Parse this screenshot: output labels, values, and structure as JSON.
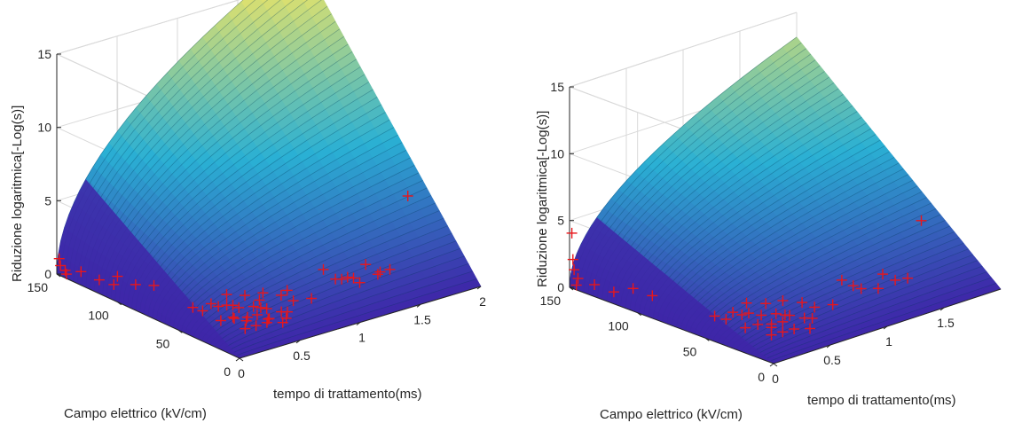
{
  "colors": {
    "marker": "#e8161b",
    "axis": "#262626",
    "grid": "#d9d9d9",
    "surface_low": "#3e26a8",
    "surface_mid": "#2ab0d4",
    "surface_high": "#dbe070"
  },
  "chart_data": [
    {
      "type": "surface3d+scatter",
      "xlabel": "tempo di trattamento(ms)",
      "ylabel": "Campo elettrico (kV/cm)",
      "zlabel": "Riduzione logaritmica[-Log(s)]",
      "xlim": [
        0,
        2
      ],
      "ylim": [
        0,
        150
      ],
      "zlim": [
        0,
        15
      ],
      "xticks": [
        "0",
        "0.5",
        "1",
        "1.5",
        "2"
      ],
      "yticks": [
        "0",
        "50",
        "100",
        "150"
      ],
      "zticks": [
        "0",
        "5",
        "10",
        "15"
      ],
      "grid": true,
      "surface_model": "z = 0.08 * E * sqrt(t) (approximate fit)",
      "scatter": [
        {
          "t": 0.02,
          "e": 150,
          "z": 1.0
        },
        {
          "t": 0.03,
          "e": 150,
          "z": 0.5
        },
        {
          "t": 0.05,
          "e": 148,
          "z": 0.2
        },
        {
          "t": 0.08,
          "e": 150,
          "z": -0.2
        },
        {
          "t": 0.1,
          "e": 140,
          "z": 0.3
        },
        {
          "t": 0.15,
          "e": 130,
          "z": 0.0
        },
        {
          "t": 0.2,
          "e": 120,
          "z": 0.5
        },
        {
          "t": 0.22,
          "e": 125,
          "z": -0.3
        },
        {
          "t": 0.25,
          "e": 110,
          "z": 0.2
        },
        {
          "t": 0.3,
          "e": 100,
          "z": 0.4
        },
        {
          "t": 0.3,
          "e": 60,
          "z": 0.2
        },
        {
          "t": 0.32,
          "e": 70,
          "z": 0.0
        },
        {
          "t": 0.35,
          "e": 50,
          "z": -0.2
        },
        {
          "t": 0.36,
          "e": 40,
          "z": 0.3
        },
        {
          "t": 0.38,
          "e": 55,
          "z": 0.5
        },
        {
          "t": 0.4,
          "e": 45,
          "z": 0.1
        },
        {
          "t": 0.4,
          "e": 35,
          "z": -0.3
        },
        {
          "t": 0.42,
          "e": 65,
          "z": 0.2
        },
        {
          "t": 0.44,
          "e": 30,
          "z": 0.0
        },
        {
          "t": 0.45,
          "e": 50,
          "z": 0.6
        },
        {
          "t": 0.46,
          "e": 40,
          "z": -0.1
        },
        {
          "t": 0.48,
          "e": 25,
          "z": 0.3
        },
        {
          "t": 0.5,
          "e": 60,
          "z": 0.1
        },
        {
          "t": 0.5,
          "e": 35,
          "z": 0.4
        },
        {
          "t": 0.52,
          "e": 45,
          "z": -0.2
        },
        {
          "t": 0.54,
          "e": 30,
          "z": 0.2
        },
        {
          "t": 0.55,
          "e": 55,
          "z": 0.0
        },
        {
          "t": 0.56,
          "e": 20,
          "z": 0.3
        },
        {
          "t": 0.58,
          "e": 40,
          "z": 0.5
        },
        {
          "t": 0.6,
          "e": 70,
          "z": 0.2
        },
        {
          "t": 0.6,
          "e": 35,
          "z": -0.1
        },
        {
          "t": 0.62,
          "e": 50,
          "z": 0.1
        },
        {
          "t": 0.64,
          "e": 25,
          "z": 0.2
        },
        {
          "t": 0.65,
          "e": 60,
          "z": 0.4
        },
        {
          "t": 0.68,
          "e": 45,
          "z": 0.0
        },
        {
          "t": 0.7,
          "e": 30,
          "z": 0.3
        },
        {
          "t": 0.72,
          "e": 55,
          "z": 0.1
        },
        {
          "t": 0.75,
          "e": 40,
          "z": -0.2
        },
        {
          "t": 0.8,
          "e": 60,
          "z": 0.2
        },
        {
          "t": 0.85,
          "e": 50,
          "z": 0.3
        },
        {
          "t": 0.9,
          "e": 45,
          "z": 0.0
        },
        {
          "t": 0.95,
          "e": 55,
          "z": 0.2
        },
        {
          "t": 1.0,
          "e": 40,
          "z": 0.1
        },
        {
          "t": 1.2,
          "e": 50,
          "z": 1.2
        },
        {
          "t": 1.25,
          "e": 40,
          "z": 0.8
        },
        {
          "t": 1.3,
          "e": 50,
          "z": 0.3
        },
        {
          "t": 1.35,
          "e": 45,
          "z": 0.5
        },
        {
          "t": 1.4,
          "e": 40,
          "z": 0.2
        },
        {
          "t": 1.45,
          "e": 50,
          "z": 0.0
        },
        {
          "t": 1.5,
          "e": 45,
          "z": 1.0
        },
        {
          "t": 1.55,
          "e": 40,
          "z": 0.4
        },
        {
          "t": 1.6,
          "e": 35,
          "z": 0.8
        },
        {
          "t": 1.62,
          "e": 45,
          "z": 0.2
        },
        {
          "t": 1.9,
          "e": 50,
          "z": 4.5
        }
      ]
    },
    {
      "type": "surface3d+scatter",
      "xlabel": "tempo di trattamento(ms)",
      "ylabel": "Campo elettrico (kV/cm)",
      "zlabel": "Riduzione logaritmica[-Log(s)]",
      "xlim": [
        0,
        2
      ],
      "ylim": [
        0,
        150
      ],
      "zlim": [
        0,
        15
      ],
      "xticks": [
        "0",
        "0.5",
        "1",
        "1.5"
      ],
      "yticks": [
        "0",
        "50",
        "100",
        "150"
      ],
      "zticks": [
        "0",
        "5",
        "10",
        "15"
      ],
      "grid": true,
      "surface_model": "z = 0.062 * E * sqrt(t) (approximate fit)",
      "scatter": [
        {
          "t": 0.02,
          "e": 150,
          "z": 4.0
        },
        {
          "t": 0.03,
          "e": 150,
          "z": 2.0
        },
        {
          "t": 0.04,
          "e": 150,
          "z": 1.2
        },
        {
          "t": 0.05,
          "e": 148,
          "z": 0.6
        },
        {
          "t": 0.06,
          "e": 150,
          "z": 0.0
        },
        {
          "t": 0.1,
          "e": 140,
          "z": 0.3
        },
        {
          "t": 0.15,
          "e": 130,
          "z": 0.0
        },
        {
          "t": 0.2,
          "e": 120,
          "z": 0.5
        },
        {
          "t": 0.25,
          "e": 110,
          "z": 0.2
        },
        {
          "t": 0.3,
          "e": 60,
          "z": 0.2
        },
        {
          "t": 0.32,
          "e": 70,
          "z": 0.0
        },
        {
          "t": 0.35,
          "e": 50,
          "z": -0.2
        },
        {
          "t": 0.38,
          "e": 55,
          "z": 0.5
        },
        {
          "t": 0.4,
          "e": 45,
          "z": 0.1
        },
        {
          "t": 0.4,
          "e": 35,
          "z": -0.3
        },
        {
          "t": 0.42,
          "e": 65,
          "z": 0.2
        },
        {
          "t": 0.44,
          "e": 30,
          "z": 0.0
        },
        {
          "t": 0.46,
          "e": 40,
          "z": -0.1
        },
        {
          "t": 0.48,
          "e": 25,
          "z": 0.3
        },
        {
          "t": 0.5,
          "e": 60,
          "z": 0.1
        },
        {
          "t": 0.5,
          "e": 35,
          "z": 0.4
        },
        {
          "t": 0.52,
          "e": 45,
          "z": -0.2
        },
        {
          "t": 0.55,
          "e": 55,
          "z": 0.0
        },
        {
          "t": 0.56,
          "e": 20,
          "z": 0.3
        },
        {
          "t": 0.58,
          "e": 40,
          "z": 0.5
        },
        {
          "t": 0.6,
          "e": 70,
          "z": 0.2
        },
        {
          "t": 0.62,
          "e": 50,
          "z": 0.1
        },
        {
          "t": 0.65,
          "e": 60,
          "z": 0.4
        },
        {
          "t": 0.68,
          "e": 45,
          "z": 0.0
        },
        {
          "t": 0.7,
          "e": 30,
          "z": 0.3
        },
        {
          "t": 0.75,
          "e": 40,
          "z": -0.2
        },
        {
          "t": 0.8,
          "e": 60,
          "z": 0.2
        },
        {
          "t": 0.85,
          "e": 50,
          "z": 0.3
        },
        {
          "t": 0.9,
          "e": 45,
          "z": 0.0
        },
        {
          "t": 1.0,
          "e": 40,
          "z": 0.1
        },
        {
          "t": 1.2,
          "e": 50,
          "z": 1.0
        },
        {
          "t": 1.25,
          "e": 40,
          "z": 0.6
        },
        {
          "t": 1.3,
          "e": 50,
          "z": 0.3
        },
        {
          "t": 1.4,
          "e": 40,
          "z": 0.2
        },
        {
          "t": 1.5,
          "e": 45,
          "z": 0.8
        },
        {
          "t": 1.55,
          "e": 40,
          "z": 0.4
        },
        {
          "t": 1.6,
          "e": 35,
          "z": 0.6
        },
        {
          "t": 1.9,
          "e": 50,
          "z": 3.5
        }
      ]
    }
  ]
}
